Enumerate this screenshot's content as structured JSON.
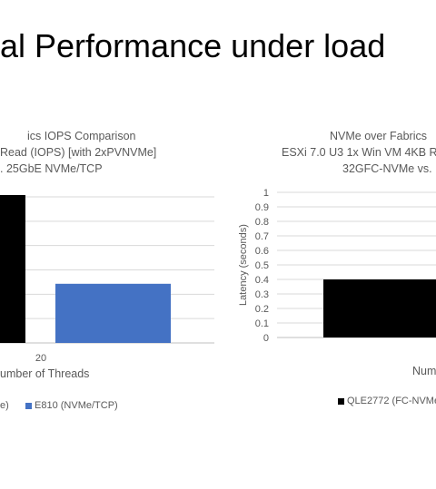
{
  "slide": {
    "title": "al Performance under load"
  },
  "chart_data": [
    {
      "type": "bar",
      "title_lines": [
        "ics IOPS Comparison",
        "Read (IOPS) [with 2xPVNVMe]",
        ". 25GbE NVMe/TCP"
      ],
      "categories": [
        "20"
      ],
      "xlabel": "umber  of Threads",
      "ylabel": "",
      "series": [
        {
          "name": "e)",
          "color": "#000000",
          "values": [
            1.0
          ]
        },
        {
          "name": "E810 (NVMe/TCP)",
          "color": "#4472C4",
          "values": [
            0.4
          ]
        }
      ],
      "ylim": [
        0,
        1.0
      ],
      "legend_position": "bottom"
    },
    {
      "type": "bar",
      "title_lines": [
        "NVMe over Fabrics",
        "ESXi 7.0 U3 1x Win VM 4KB R",
        "32GFC-NVMe vs."
      ],
      "ylabel": "Latency (seconds)",
      "xlabel": "Num",
      "y_ticks": [
        "0",
        "0.1",
        "0.2",
        "0.3",
        "0.4",
        "0.5",
        "0.6",
        "0.7",
        "0.8",
        "0.9",
        "1"
      ],
      "ylim": [
        0,
        1
      ],
      "series": [
        {
          "name": "QLE2772 (FC-NVMe",
          "color": "#000000",
          "values": [
            0.4
          ]
        }
      ],
      "legend_position": "bottom"
    }
  ]
}
